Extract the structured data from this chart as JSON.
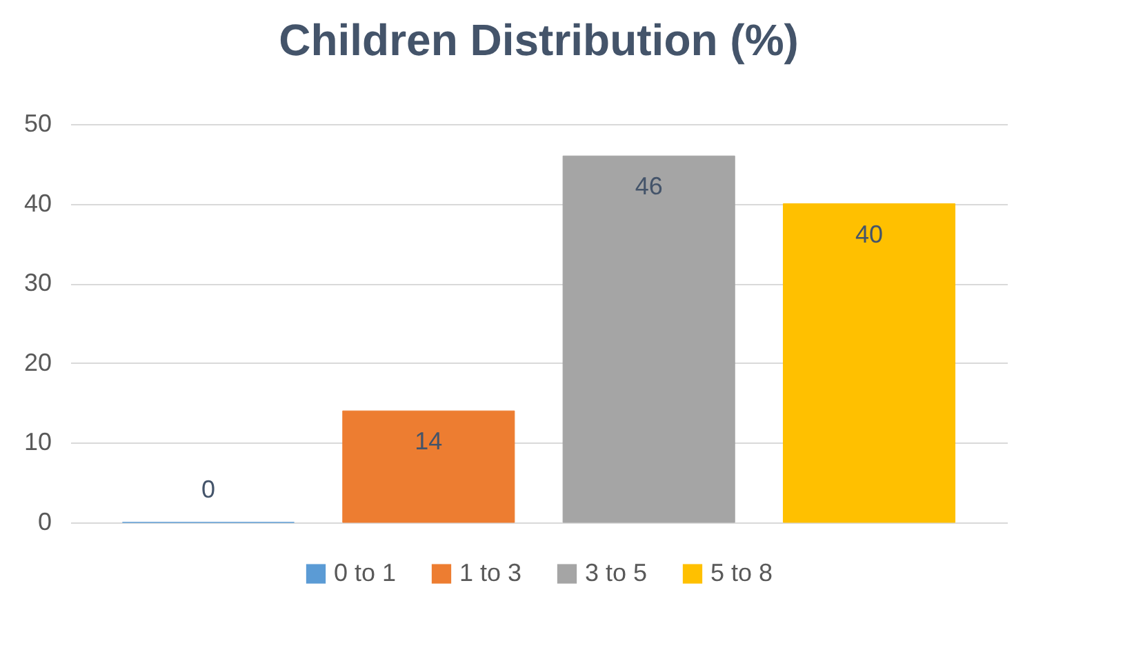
{
  "chart_data": {
    "type": "bar",
    "title": "Children Distribution (%)",
    "categories": [
      null
    ],
    "series": [
      {
        "name": "0 to 1",
        "color": "#5b9bd5",
        "values": [
          0
        ]
      },
      {
        "name": "1 to 3",
        "color": "#ed7d31",
        "values": [
          14
        ]
      },
      {
        "name": "3 to 5",
        "color": "#a5a5a5",
        "values": [
          46
        ]
      },
      {
        "name": "5 to 8",
        "color": "#ffc000",
        "values": [
          40
        ]
      }
    ],
    "ylim": [
      0,
      50
    ],
    "yticks": [
      0,
      10,
      20,
      30,
      40,
      50
    ],
    "grid": "y",
    "legend": "bottom",
    "data_labels": true
  }
}
